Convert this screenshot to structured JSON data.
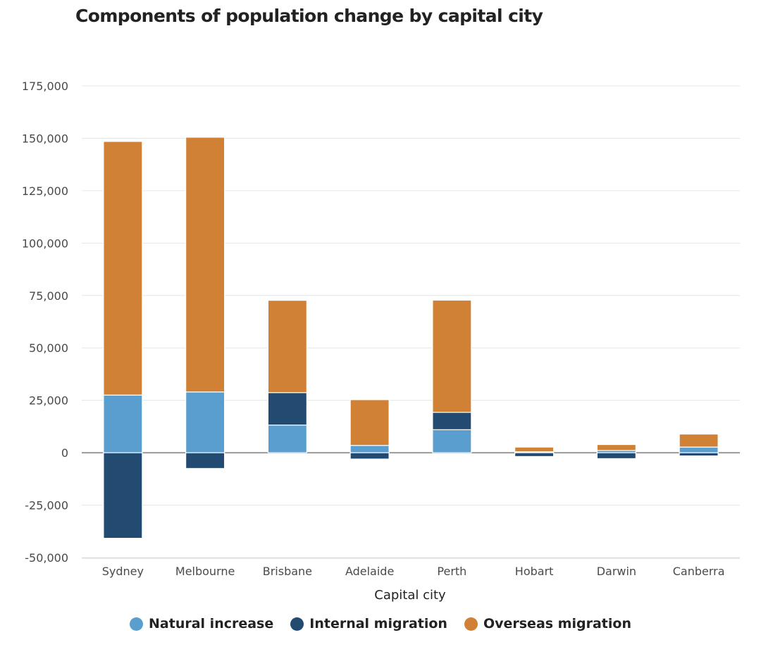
{
  "chart_data": {
    "type": "bar",
    "stacked": true,
    "title": "Components of population change by capital city",
    "xlabel": "Capital city",
    "ylabel": "",
    "ylim": [
      -50000,
      175000
    ],
    "yticks": [
      175000,
      150000,
      125000,
      100000,
      75000,
      50000,
      25000,
      0,
      -25000,
      -50000
    ],
    "ytick_labels": [
      "175,000",
      "150,000",
      "125,000",
      "100,000",
      "75,000",
      "50,000",
      "25,000",
      "0",
      "-25,000",
      "-50,000"
    ],
    "grid": true,
    "legend_position": "bottom",
    "categories": [
      "Sydney",
      "Melbourne",
      "Brisbane",
      "Adelaide",
      "Perth",
      "Hobart",
      "Darwin",
      "Canberra"
    ],
    "series": [
      {
        "name": "Natural increase",
        "color": "#5a9ecf",
        "values": [
          27500,
          29000,
          13200,
          3500,
          11000,
          500,
          1100,
          2700
        ]
      },
      {
        "name": "Internal migration",
        "color": "#234a70",
        "values": [
          -40800,
          -7500,
          15500,
          -3000,
          8300,
          -1800,
          -2800,
          -1500
        ]
      },
      {
        "name": "Overseas migration",
        "color": "#d08135",
        "values": [
          121000,
          121500,
          44000,
          21800,
          53500,
          2200,
          2800,
          6200
        ]
      }
    ]
  }
}
